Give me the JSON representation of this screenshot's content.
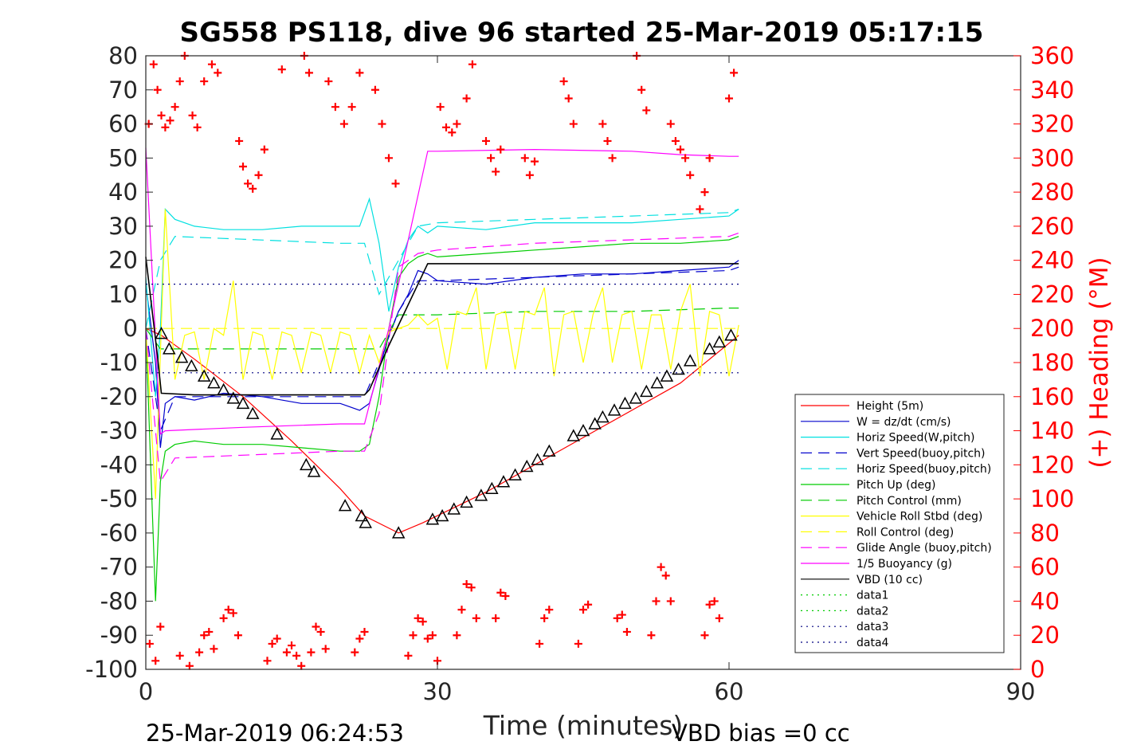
{
  "chart_data": {
    "type": "line",
    "title": "SG558 PS118, dive 96 started 25-Mar-2019 05:17:15",
    "xlabel": "Time (minutes)",
    "ylabel": "",
    "y2label": "(+) Heading (°M)",
    "xlim": [
      0,
      90
    ],
    "ylim": [
      -100,
      80
    ],
    "y2lim": [
      0,
      360
    ],
    "xticks": [
      "0",
      "30",
      "60",
      "90"
    ],
    "yticks": [
      "80",
      "70",
      "60",
      "50",
      "40",
      "30",
      "20",
      "10",
      "0",
      "-10",
      "-20",
      "-30",
      "-40",
      "-50",
      "-60",
      "-70",
      "-80",
      "-90",
      "-100"
    ],
    "y2ticks": [
      "360",
      "340",
      "320",
      "300",
      "280",
      "260",
      "240",
      "220",
      "200",
      "180",
      "160",
      "140",
      "120",
      "100",
      "80",
      "60",
      "40",
      "20",
      "0"
    ],
    "legend_position": "inside right",
    "grid": false,
    "series": [
      {
        "name": "Height (5m)",
        "color": "#ff0000",
        "style": "solid",
        "x": [
          0,
          1.6,
          5,
          10,
          15,
          20,
          22.5,
          26,
          28.5,
          35,
          45,
          55,
          61
        ],
        "y": [
          0,
          -2,
          -9,
          -20,
          -33,
          -47,
          -55,
          -60,
          -57,
          -48,
          -32,
          -16,
          -2
        ]
      },
      {
        "name": "W = dz/dt (cm/s)",
        "color": "#0000cc",
        "style": "solid",
        "x": [
          0,
          1,
          1.5,
          2,
          3,
          5,
          8,
          12,
          16,
          20,
          22,
          23,
          24,
          25,
          26,
          27,
          28,
          29,
          30,
          35,
          40,
          45,
          50,
          55,
          60,
          61
        ],
        "y": [
          13,
          -10,
          -35,
          -22,
          -20,
          -21,
          -19,
          -20,
          -22,
          -22,
          -24,
          -22,
          -12,
          -2,
          5,
          10,
          17,
          16,
          14,
          13,
          15,
          16,
          16,
          17,
          18,
          20
        ]
      },
      {
        "name": "Horiz Speed(W,pitch)",
        "color": "#00e0e0",
        "style": "solid",
        "x": [
          0,
          1,
          1.5,
          2,
          3,
          5,
          8,
          12,
          16,
          20,
          22,
          23,
          24,
          25,
          26,
          27,
          28,
          29,
          30,
          35,
          40,
          45,
          50,
          55,
          60,
          61
        ],
        "y": [
          15,
          -20,
          0,
          35,
          32,
          30,
          29,
          29,
          30,
          30,
          30,
          38,
          25,
          5,
          18,
          26,
          30,
          28,
          30,
          29,
          31,
          31,
          31,
          32,
          33,
          35
        ]
      },
      {
        "name": "Vert Speed(buoy,pitch)",
        "color": "#0000cc",
        "style": "dashed",
        "x": [
          0,
          1.5,
          3,
          20,
          22.5,
          24,
          26,
          28,
          30,
          40,
          50,
          60,
          61
        ],
        "y": [
          0,
          -30,
          -20,
          -20,
          -20,
          -10,
          5,
          14,
          14,
          15,
          16,
          17,
          18
        ]
      },
      {
        "name": "Horiz Speed(buoy,pitch)",
        "color": "#00e0e0",
        "style": "dashed",
        "x": [
          0,
          1.5,
          3,
          20,
          22.5,
          24,
          26,
          28,
          30,
          40,
          50,
          60,
          61
        ],
        "y": [
          0,
          20,
          27,
          25,
          25,
          10,
          20,
          30,
          31,
          32,
          33,
          34,
          35
        ]
      },
      {
        "name": "Pitch Up (deg)",
        "color": "#00cc00",
        "style": "solid",
        "x": [
          0,
          1,
          1.5,
          2,
          3,
          5,
          8,
          12,
          16,
          20,
          22,
          23,
          24,
          25,
          26,
          27,
          28,
          29,
          30,
          35,
          40,
          45,
          50,
          55,
          60,
          61
        ],
        "y": [
          0,
          -80,
          -45,
          -36,
          -34,
          -33,
          -34,
          -34,
          -35,
          -36,
          -36,
          -34,
          -20,
          0,
          15,
          19,
          21,
          22,
          21,
          22,
          23,
          24,
          25,
          25,
          26,
          27
        ]
      },
      {
        "name": "Pitch Control (mm)",
        "color": "#00cc00",
        "style": "dashed",
        "x": [
          0,
          1.5,
          2,
          22.5,
          24,
          26,
          27,
          30,
          40,
          50,
          60,
          61
        ],
        "y": [
          0,
          -6,
          -6,
          -6,
          -6,
          4,
          4,
          4,
          5,
          5,
          6,
          6
        ]
      },
      {
        "name": "Vehicle Roll Stbd (deg)",
        "color": "#ffff00",
        "style": "solid",
        "x": [
          0,
          1,
          2,
          3,
          4,
          5,
          6,
          7,
          8,
          9,
          10,
          11,
          12,
          13,
          14,
          15,
          16,
          17,
          18,
          19,
          20,
          21,
          22,
          23,
          24,
          25,
          26,
          27,
          28,
          29,
          30,
          31,
          32,
          33,
          34,
          35,
          36,
          37,
          38,
          39,
          40,
          41,
          42,
          43,
          44,
          45,
          46,
          47,
          48,
          49,
          50,
          51,
          52,
          53,
          54,
          55,
          56,
          57,
          58,
          59,
          60,
          61
        ],
        "y": [
          0,
          -50,
          35,
          -15,
          -2,
          -1,
          -15,
          0,
          -2,
          14,
          -15,
          -1,
          -2,
          -15,
          -1,
          -2,
          -13,
          -1,
          -2,
          -13,
          -1,
          -2,
          -13,
          -2,
          -10,
          -1,
          0,
          1,
          4,
          1,
          3,
          -12,
          5,
          4,
          12,
          -12,
          4,
          5,
          -12,
          5,
          4,
          12,
          -14,
          4,
          5,
          -10,
          4,
          12,
          -10,
          4,
          5,
          -12,
          4,
          4,
          -12,
          5,
          13,
          -14,
          5,
          4,
          -14,
          1
        ]
      },
      {
        "name": "Roll Control (deg)",
        "color": "#ffff00",
        "style": "dashed",
        "x": [
          0,
          61
        ],
        "y": [
          0,
          0
        ]
      },
      {
        "name": "Glide Angle (buoy,pitch)",
        "color": "#ff00ff",
        "style": "dashed",
        "x": [
          0,
          1.5,
          3,
          20,
          22.5,
          24,
          26,
          28,
          30,
          40,
          50,
          60,
          61
        ],
        "y": [
          0,
          -45,
          -38,
          -36,
          -36,
          -25,
          18,
          22,
          23,
          25,
          26,
          27,
          28
        ]
      },
      {
        "name": "1/5 Buoyancy (g)",
        "color": "#ff00ff",
        "style": "solid",
        "x": [
          0,
          1.5,
          2,
          10,
          20,
          22.5,
          25,
          29,
          30,
          40,
          50,
          55,
          60,
          61
        ],
        "y": [
          53,
          -31,
          -30,
          -29,
          -28,
          -28,
          0,
          52,
          52,
          52.5,
          52,
          51,
          50.5,
          50.5
        ]
      },
      {
        "name": "VBD (10 cc)",
        "color": "#000000",
        "style": "solid",
        "x": [
          0,
          1.2,
          1.6,
          5,
          10,
          15,
          20,
          22.5,
          23,
          25,
          29,
          30,
          40,
          50,
          60,
          61
        ],
        "y": [
          21,
          -8,
          -19,
          -19.5,
          -19.5,
          -19.5,
          -19.5,
          -19.5,
          -18,
          -5,
          19,
          19,
          19,
          19,
          19,
          19
        ]
      },
      {
        "name": "data1",
        "color": "#00cc00",
        "style": "dotted",
        "x": [],
        "y": []
      },
      {
        "name": "data2",
        "color": "#00cc00",
        "style": "dotted",
        "x": [],
        "y": []
      },
      {
        "name": "data3",
        "color": "#000080",
        "style": "dotted",
        "x": [
          0,
          61
        ],
        "y": [
          13,
          13
        ]
      },
      {
        "name": "data4",
        "color": "#000080",
        "style": "dotted",
        "x": [
          0,
          61
        ],
        "y": [
          -13,
          -13
        ]
      }
    ],
    "marker_series": [
      {
        "name": "Height (5m)",
        "marker": "triangle",
        "color": "#000000",
        "x": [
          1.6,
          2.4,
          3.7,
          4.7,
          6,
          7,
          8,
          9,
          10,
          11,
          13.5,
          16.5,
          17.3,
          20.5,
          22.2,
          22.6,
          26,
          29.5,
          30.5,
          31.7,
          33,
          34.5,
          35.6,
          36.8,
          38,
          39.2,
          40.3,
          41.5,
          44,
          45,
          46.2,
          47,
          48.2,
          49.3,
          50.4,
          51.5,
          52.6,
          53.6,
          54.8,
          56,
          58,
          59,
          60.2
        ],
        "y": [
          -1.5,
          -6,
          -8.5,
          -11,
          -14,
          -16,
          -18,
          -20.5,
          -22,
          -25,
          -31,
          -40,
          -42,
          -52,
          -55,
          -57,
          -60,
          -56,
          -55,
          -53,
          -51,
          -49,
          -47,
          -45,
          -43,
          -40.5,
          -38.5,
          -36,
          -31.5,
          -30,
          -28,
          -26,
          -24,
          -22,
          -20.5,
          -18.5,
          -16,
          -14,
          -12,
          -9.5,
          -6,
          -4,
          -2
        ]
      },
      {
        "name": "Heading",
        "marker": "plus",
        "color": "#ff0000",
        "axis": "right",
        "x": [
          0.3,
          0.8,
          1.2,
          1.6,
          2.0,
          2.5,
          3.0,
          3.5,
          4.0,
          4.8,
          5.3,
          6.0,
          6.8,
          7.4,
          9.6,
          10.0,
          10.5,
          11.0,
          11.6,
          12.2,
          14.0,
          16.3,
          16.8,
          18.8,
          19.5,
          20.4,
          21.2,
          22.0,
          23.6,
          24.3,
          25.0,
          25.7,
          30.3,
          30.9,
          31.5,
          32.0,
          33.0,
          33.6,
          35.0,
          35.5,
          36.0,
          36.5,
          39.0,
          39.5,
          40.0,
          43.0,
          43.5,
          44.0,
          47.0,
          47.5,
          48.0,
          50.5,
          51.0,
          51.5,
          54.0,
          54.5,
          55.0,
          55.5,
          56.0,
          57.0,
          57.5,
          58.0,
          60.0,
          60.5
        ],
        "y": [
          320,
          355,
          340,
          325,
          318,
          322,
          330,
          345,
          360,
          325,
          318,
          345,
          355,
          350,
          310,
          295,
          285,
          282,
          290,
          305,
          352,
          360,
          350,
          345,
          330,
          320,
          330,
          350,
          340,
          320,
          300,
          285,
          330,
          318,
          315,
          320,
          335,
          355,
          310,
          300,
          292,
          305,
          300,
          290,
          298,
          345,
          335,
          320,
          320,
          310,
          300,
          360,
          340,
          328,
          320,
          310,
          305,
          300,
          290,
          270,
          280,
          300,
          335,
          350
        ]
      },
      {
        "name": "Heading (low)",
        "marker": "plus",
        "color": "#ff0000",
        "axis": "right",
        "x": [
          0.4,
          1.0,
          1.5,
          3.5,
          4.5,
          5.5,
          6.0,
          6.5,
          7.0,
          8.0,
          8.5,
          9.0,
          9.5,
          12.5,
          13.0,
          13.5,
          14.5,
          15.0,
          15.5,
          16.0,
          17.0,
          17.5,
          18.0,
          18.5,
          21.5,
          22.0,
          22.5,
          27.0,
          27.5,
          28.0,
          28.5,
          29.0,
          29.5,
          30.0,
          32.0,
          32.5,
          33.0,
          33.5,
          34.0,
          36.0,
          36.5,
          37.0,
          40.5,
          41.0,
          41.5,
          44.5,
          45.0,
          45.5,
          48.5,
          49.0,
          49.5,
          52.0,
          52.5,
          53.0,
          53.5,
          54.0,
          57.5,
          58.0,
          58.5,
          59.0
        ],
        "y": [
          15,
          5,
          25,
          8,
          2,
          10,
          20,
          22,
          12,
          30,
          35,
          33,
          20,
          5,
          15,
          18,
          10,
          14,
          8,
          2,
          10,
          25,
          22,
          12,
          10,
          18,
          22,
          8,
          20,
          30,
          28,
          18,
          20,
          5,
          20,
          35,
          50,
          48,
          30,
          30,
          45,
          43,
          15,
          30,
          35,
          15,
          35,
          38,
          30,
          32,
          22,
          20,
          40,
          60,
          55,
          40,
          20,
          38,
          40,
          30
        ]
      }
    ],
    "footer_left": "25-Mar-2019 06:24:53",
    "footer_right": "VBD bias =0 cc"
  }
}
